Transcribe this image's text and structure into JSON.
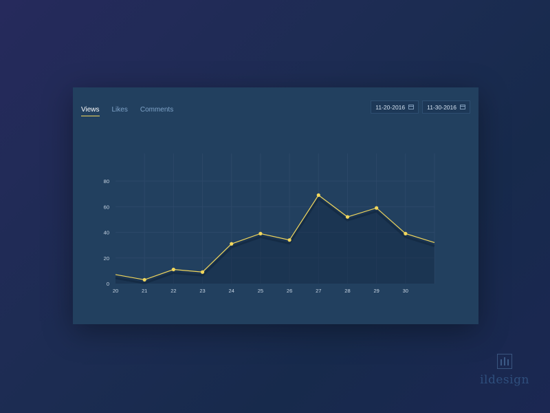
{
  "tabs": [
    {
      "label": "Views",
      "active": true
    },
    {
      "label": "Likes",
      "active": false
    },
    {
      "label": "Comments",
      "active": false
    }
  ],
  "date_range": {
    "start": "11-20-2016",
    "end": "11-30-2016"
  },
  "watermark": {
    "text": "ildesign"
  },
  "colors": {
    "accent": "#f2d75c",
    "card": "#22405f",
    "grid": "#2c4868",
    "tab_inactive": "#7fa3c8"
  },
  "chart_data": {
    "type": "line",
    "title": "",
    "xlabel": "",
    "ylabel": "",
    "categories": [
      "20",
      "21",
      "22",
      "23",
      "24",
      "25",
      "26",
      "27",
      "28",
      "29",
      "30"
    ],
    "x": [
      20,
      21,
      22,
      23,
      24,
      25,
      26,
      27,
      28,
      29,
      30,
      31
    ],
    "values": [
      7,
      3,
      11,
      9,
      31,
      39,
      34,
      69,
      52,
      59,
      39,
      32
    ],
    "markers": [
      false,
      true,
      true,
      true,
      true,
      true,
      true,
      true,
      true,
      true,
      true,
      false
    ],
    "yticks": [
      0,
      20,
      40,
      60,
      80
    ],
    "ylim": [
      0,
      80
    ],
    "xlim": [
      20,
      31
    ],
    "grid": true,
    "fill": true
  }
}
